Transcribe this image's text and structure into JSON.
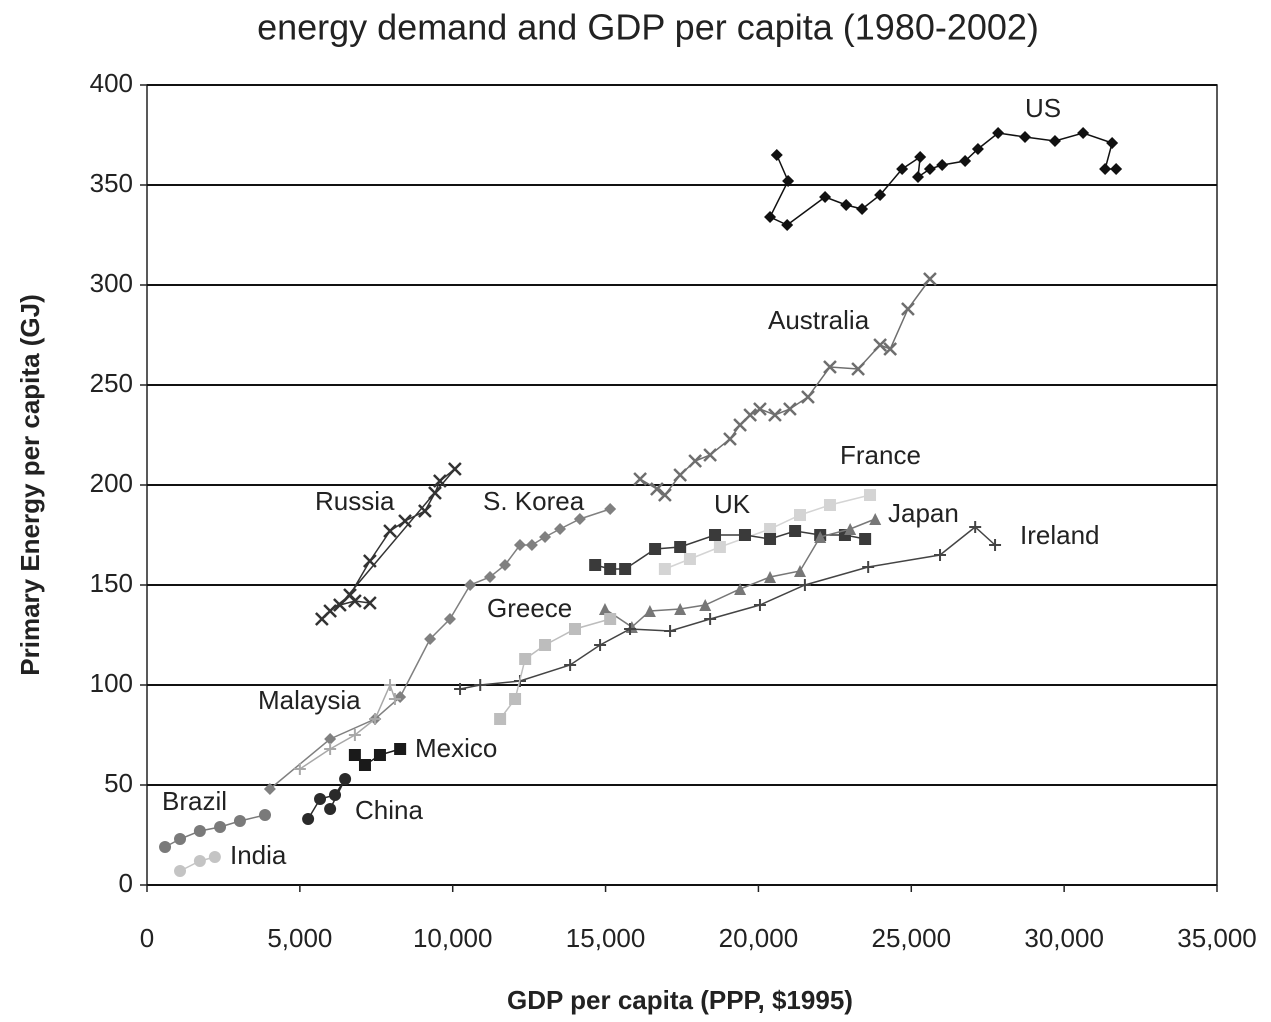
{
  "chart_data": {
    "type": "line",
    "title": "energy demand and GDP per capita (1980-2002)",
    "x_label": "GDP per capita (PPP, $1995)",
    "y_label": "Primary Energy per capita (GJ)",
    "xlim": [
      0,
      35000
    ],
    "xticks": [
      0,
      {
        "value": 5000,
        "label": "5,000"
      },
      {
        "value": 10000,
        "label": "10,000"
      },
      {
        "value": 15000,
        "label": "15,000"
      },
      {
        "value": 20000,
        "label": "20,000"
      },
      {
        "value": 25000,
        "label": "25,000"
      },
      {
        "value": 30000,
        "label": "30,000"
      },
      {
        "value": 35000,
        "label": "35,000"
      }
    ],
    "ylim": [
      0,
      400
    ],
    "yticks": [
      0,
      50,
      100,
      150,
      200,
      250,
      300,
      350,
      400
    ],
    "grid": true,
    "series": [
      {
        "name": "US",
        "color": "#111111",
        "marker": "diamond",
        "x": [
          20600,
          20970,
          20380,
          20940,
          22180,
          22870,
          23390,
          23980,
          24700,
          25290,
          25220,
          25610,
          26010,
          26760,
          27180,
          27840,
          28720,
          29700,
          30620,
          31570,
          31340,
          31700
        ],
        "values": [
          365,
          352,
          334,
          330,
          344,
          340,
          338,
          345,
          358,
          364,
          354,
          358,
          360,
          362,
          368,
          376,
          374,
          372,
          376,
          371,
          358,
          358
        ]
      },
      {
        "name": "Australia",
        "color": "#6e6e6e",
        "marker": "x",
        "x": [
          16130,
          16680,
          16940,
          17440,
          17930,
          18420,
          19070,
          19400,
          19730,
          20050,
          20540,
          21030,
          21620,
          22340,
          23260,
          23980,
          24310,
          24890,
          25610
        ],
        "values": [
          203,
          198,
          195,
          205,
          212,
          215,
          223,
          230,
          235,
          238,
          235,
          238,
          244,
          259,
          258,
          270,
          268,
          288,
          303
        ]
      },
      {
        "name": "Russia",
        "color": "#333333",
        "marker": "x",
        "x": [
          5720,
          5990,
          6640,
          7290,
          7950,
          8440,
          9090,
          9420,
          9580,
          10070,
          6310,
          6800,
          7290
        ],
        "values": [
          133,
          137,
          145,
          162,
          177,
          182,
          187,
          196,
          202,
          208,
          140,
          142,
          141
        ]
      },
      {
        "name": "S. Korea",
        "color": "#808080",
        "marker": "diamond",
        "x": [
          4020,
          5990,
          7460,
          8280,
          9260,
          9910,
          10570,
          11220,
          11710,
          12200,
          12590,
          13020,
          13510,
          14160,
          15150
        ],
        "values": [
          48,
          73,
          83,
          94,
          123,
          133,
          150,
          154,
          160,
          170,
          170,
          174,
          178,
          183,
          188
        ]
      },
      {
        "name": "France",
        "color": "#d4d4d4",
        "marker": "square",
        "x": [
          16940,
          17760,
          18740,
          20380,
          21360,
          22340,
          23650
        ],
        "values": [
          158,
          163,
          169,
          178,
          185,
          190,
          195
        ]
      },
      {
        "name": "UK",
        "color": "#3a3a3a",
        "marker": "square",
        "x": [
          14660,
          15150,
          15640,
          16620,
          17440,
          18580,
          19560,
          20380,
          21200,
          22020,
          22830,
          23490
        ],
        "values": [
          160,
          158,
          158,
          168,
          169,
          175,
          175,
          173,
          177,
          175,
          175,
          173
        ]
      },
      {
        "name": "Japan",
        "color": "#777777",
        "marker": "triangle",
        "x": [
          14980,
          15860,
          16450,
          17440,
          18260,
          19400,
          20380,
          21360,
          22020,
          23000,
          23820
        ],
        "values": [
          138,
          129,
          137,
          138,
          140,
          148,
          154,
          157,
          174,
          178,
          183
        ]
      },
      {
        "name": "Ireland",
        "color": "#444444",
        "marker": "plus",
        "x": [
          10240,
          10900,
          12200,
          13840,
          14820,
          15800,
          17110,
          18420,
          20050,
          21520,
          23590,
          25940,
          27090,
          27740
        ],
        "values": [
          98,
          100,
          102,
          110,
          120,
          128,
          127,
          133,
          140,
          150,
          159,
          165,
          179,
          170
        ]
      },
      {
        "name": "Greece",
        "color": "#bdbdbd",
        "marker": "square",
        "x": [
          11550,
          12040,
          12370,
          13020,
          14000,
          15150
        ],
        "values": [
          83,
          93,
          113,
          120,
          128,
          133
        ]
      },
      {
        "name": "Malaysia",
        "color": "#a8a8a8",
        "marker": "plus",
        "x": [
          5000,
          5990,
          6800,
          7460,
          7950,
          8110
        ],
        "values": [
          58,
          68,
          75,
          83,
          100,
          93
        ]
      },
      {
        "name": "Mexico",
        "color": "#1a1a1a",
        "marker": "square",
        "x": [
          6800,
          7130,
          7620,
          8280
        ],
        "values": [
          65,
          60,
          65,
          68
        ]
      },
      {
        "name": "Brazil",
        "color": "#2a2a2a",
        "marker": "circle",
        "x": [
          5270,
          5660,
          6150,
          6480,
          5990
        ],
        "values": [
          33,
          43,
          45,
          53,
          38
        ]
      },
      {
        "name": "China",
        "color": "#7a7a7a",
        "marker": "circle",
        "x": [
          590,
          1080,
          1730,
          2390,
          3040,
          3860
        ],
        "values": [
          19,
          23,
          27,
          29,
          32,
          35
        ]
      },
      {
        "name": "India",
        "color": "#c4c4c4",
        "marker": "circle",
        "x": [
          1080,
          1730,
          2220
        ],
        "values": [
          7,
          12,
          14
        ]
      }
    ]
  }
}
